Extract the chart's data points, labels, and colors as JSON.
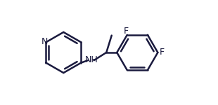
{
  "bg_color": "#ffffff",
  "line_color": "#1a1a3e",
  "line_width": 1.8,
  "font_size": 9,
  "atoms": {
    "N_label": "N",
    "NH_label": "NH",
    "F1_label": "F",
    "F2_label": "F"
  },
  "figsize": [
    3.1,
    1.5
  ],
  "dpi": 100
}
